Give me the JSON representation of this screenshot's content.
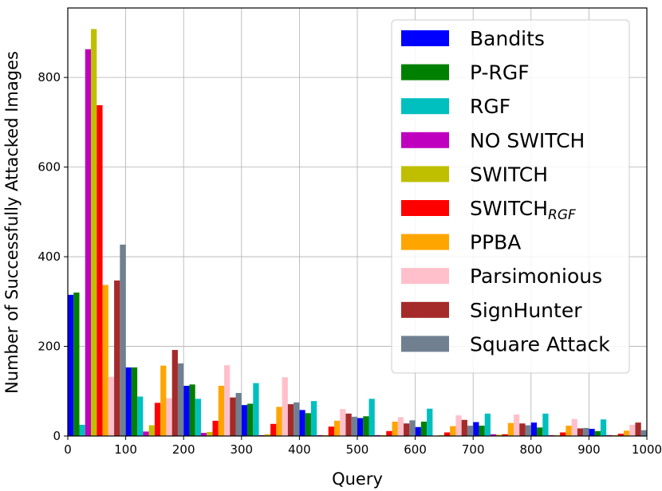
{
  "chart_data": {
    "type": "bar",
    "xlabel": "Query",
    "ylabel": "Number of Successfully Attacked Images",
    "xlim": [
      0,
      1000
    ],
    "ylim": [
      0,
      955
    ],
    "x_ticks": [
      "0",
      "100",
      "200",
      "300",
      "400",
      "500",
      "600",
      "700",
      "800",
      "900",
      "1000"
    ],
    "y_ticks": [
      "0",
      "200",
      "400",
      "600",
      "800"
    ],
    "grid": true,
    "legend_position": "top-right",
    "bin_width": 100,
    "x": [
      0,
      100,
      200,
      300,
      400,
      500,
      600,
      700,
      800,
      900
    ],
    "series": [
      {
        "name": "Bandits",
        "name_sub": "",
        "color": "#0000ff",
        "values": [
          315,
          153,
          112,
          69,
          58,
          40,
          20,
          31,
          30,
          16
        ]
      },
      {
        "name": "P-RGF",
        "name_sub": "",
        "color": "#008000",
        "values": [
          320,
          153,
          115,
          72,
          51,
          44,
          32,
          23,
          19,
          11
        ]
      },
      {
        "name": "RGF",
        "name_sub": "",
        "color": "#00bfbf",
        "values": [
          25,
          88,
          83,
          118,
          78,
          83,
          61,
          50,
          50,
          37
        ]
      },
      {
        "name": "NO SWITCH",
        "name_sub": "",
        "color": "#bf00bf",
        "values": [
          863,
          10,
          7,
          2,
          2,
          2,
          1,
          4,
          2,
          2
        ]
      },
      {
        "name": "SWITCH",
        "name_sub": "",
        "color": "#bfbf00",
        "values": [
          908,
          24,
          9,
          4,
          2,
          2,
          2,
          3,
          2,
          2
        ]
      },
      {
        "name": "SWITCH",
        "name_sub": "RGF",
        "color": "#ff0000",
        "values": [
          738,
          74,
          34,
          27,
          21,
          11,
          8,
          4,
          8,
          5
        ]
      },
      {
        "name": "PPBA",
        "name_sub": "",
        "color": "#ffa500",
        "values": [
          337,
          157,
          112,
          65,
          34,
          32,
          22,
          29,
          23,
          12
        ]
      },
      {
        "name": "Parsimonious",
        "name_sub": "",
        "color": "#ffc0cb",
        "values": [
          132,
          84,
          158,
          131,
          60,
          42,
          46,
          48,
          38,
          25
        ]
      },
      {
        "name": "SignHunter",
        "name_sub": "",
        "color": "#a52a2a",
        "values": [
          347,
          192,
          86,
          71,
          50,
          28,
          36,
          28,
          17,
          30
        ]
      },
      {
        "name": "Square Attack",
        "name_sub": "",
        "color": "#708090",
        "values": [
          427,
          162,
          96,
          75,
          43,
          35,
          23,
          24,
          18,
          13
        ]
      }
    ]
  }
}
